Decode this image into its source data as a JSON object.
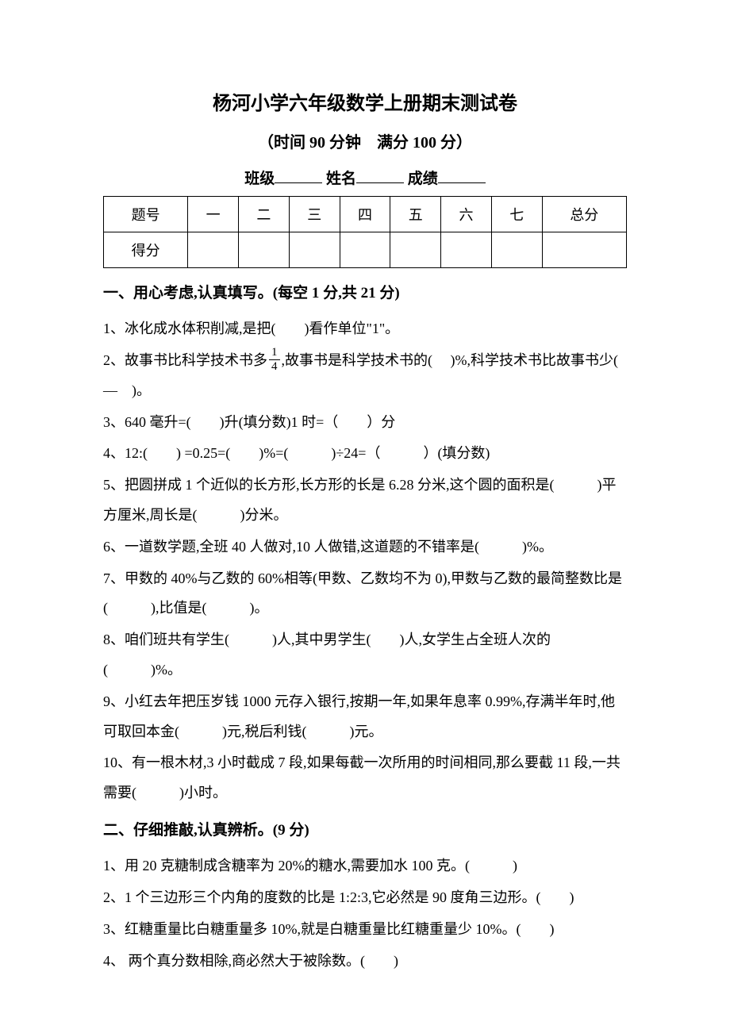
{
  "header": {
    "title": "杨河小学六年级数学上册期末测试卷",
    "subtitle": "（时间 90 分钟　满分 100 分）",
    "class_label": "班级",
    "name_label": "姓名",
    "score_label": "成绩"
  },
  "score_table": {
    "headers": [
      "题号",
      "一",
      "二",
      "三",
      "四",
      "五",
      "六",
      "七",
      "总分"
    ],
    "row_label": "得分",
    "column_widths": [
      "12%",
      "10%",
      "10%",
      "10%",
      "10%",
      "12%",
      "12%",
      "12%",
      "12%"
    ]
  },
  "sections": {
    "s1": {
      "heading": "一、用心考虑,认真填写。(每空 1 分,共 21 分)",
      "q1": "1、冰化成水体积削减,是把(　　)看作单位\"1\"。",
      "q2_a": "2、故事书比科学技术书多",
      "q2_frac_num": "1",
      "q2_frac_den": "4",
      "q2_b": ",故事书是科学技术书的(　 )%,科学技术书比故事书少(　—　)。",
      "q3": "3、640 毫升=(　　)升(填分数)1 时=（　　）分",
      "q4": "4、12:(　　) =0.25=(　　)%=(　　　)÷24=（　　　）(填分数)",
      "q5": "5、把圆拼成 1 个近似的长方形,长方形的长是 6.28 分米,这个圆的面积是(　　　)平方厘米,周长是(　　　)分米。",
      "q6": "6、一道数学题,全班 40 人做对,10 人做错,这道题的不错率是(　　　)%。",
      "q7": "7、甲数的 40%与乙数的 60%相等(甲数、乙数均不为 0),甲数与乙数的最简整数比是(　　　),比值是(　　　)。",
      "q8": "8、咱们班共有学生(　　　)人,其中男学生(　　)人,女学生占全班人次的(　　　)%。",
      "q9": "9、小红去年把压岁钱 1000 元存入银行,按期一年,如果年息率 0.99%,存满半年时,他可取回本金(　　　)元,税后利钱(　　　)元。",
      "q10": "10、有一根木材,3 小时截成 7 段,如果每截一次所用的时间相同,那么要截 11 段,一共需要(　　　)小时。"
    },
    "s2": {
      "heading": "二、仔细推敲,认真辨析。(9 分)",
      "q1": "1、用 20 克糖制成含糖率为 20%的糖水,需要加水 100 克。(　　　)",
      "q2": "2、1 个三边形三个内角的度数的比是 1:2:3,它必然是 90 度角三边形。(　　)",
      "q3": "3、红糖重量比白糖重量多 10%,就是白糖重量比红糖重量少 10%。(　　)",
      "q4": "4、 两个真分数相除,商必然大于被除数。(　　)"
    }
  },
  "styles": {
    "background_color": "#ffffff",
    "text_color": "#000000",
    "title_fontsize": 24,
    "subtitle_fontsize": 20,
    "heading_fontsize": 19,
    "body_fontsize": 18,
    "line_height": 2.1,
    "font_family": "SimSun"
  }
}
